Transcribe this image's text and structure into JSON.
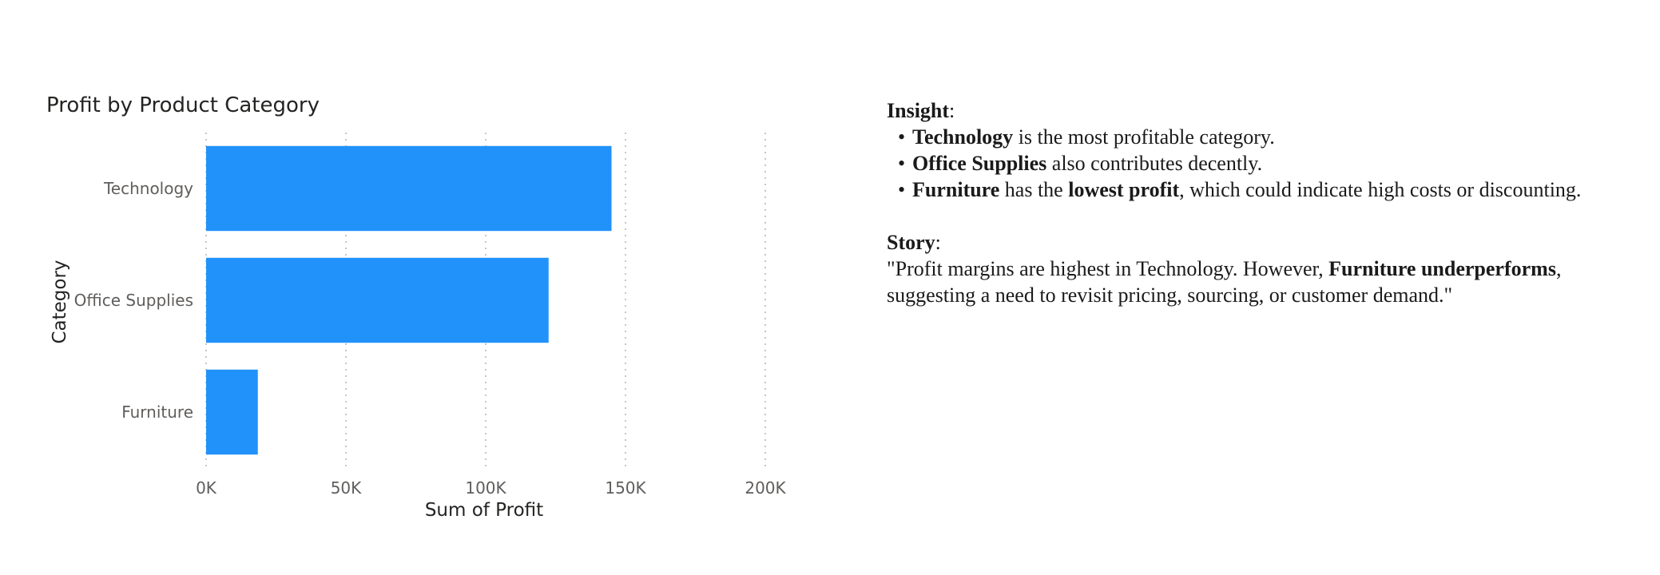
{
  "chart_data": {
    "type": "bar",
    "orientation": "horizontal",
    "title": "Profit by Product Category",
    "xlabel": "Sum of Profit",
    "ylabel": "Category",
    "categories": [
      "Technology",
      "Office Supplies",
      "Furniture"
    ],
    "values": [
      145000,
      122500,
      18500
    ],
    "xlim": [
      0,
      200000
    ],
    "xticks": [
      0,
      50000,
      100000,
      150000,
      200000
    ],
    "xtick_labels": [
      "0K",
      "50K",
      "100K",
      "150K",
      "200K"
    ],
    "grid": true,
    "bar_color": "#2192fa"
  },
  "insight": {
    "heading": "Insight",
    "bullets": [
      {
        "b1": "Technology",
        "t1": " is the most profitable category."
      },
      {
        "b1": "Office Supplies",
        "t1": " also contributes decently."
      },
      {
        "b1": "Furniture",
        "t1": " has the ",
        "b2": "lowest profit",
        "t2": ", which could indicate high costs or discounting."
      }
    ]
  },
  "story": {
    "heading": "Story",
    "pre": "\"Profit margins are highest in Technology. However, ",
    "bold": "Furniture underperforms",
    "post": ", suggesting a need to revisit pricing, sourcing, or customer demand.\""
  }
}
